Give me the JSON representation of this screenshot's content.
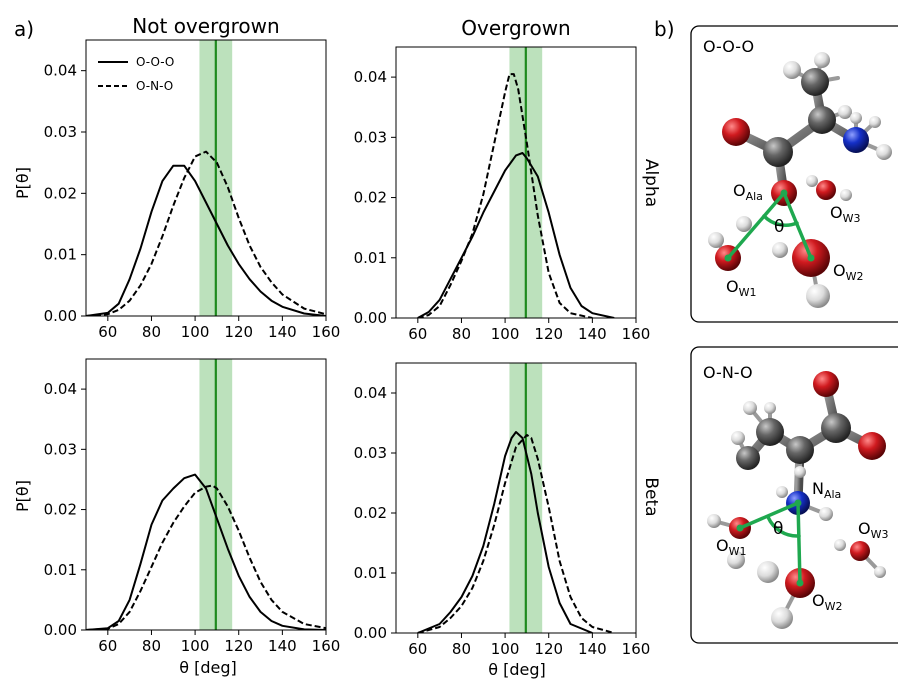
{
  "figure": {
    "panel_a_label": "a)",
    "panel_b_label": "b)",
    "col_titles": [
      "Not overgrown",
      "Overgrown"
    ],
    "row_labels": [
      "Alpha",
      "Beta"
    ],
    "ylabel": "P[θ]",
    "xlabel": "θ [deg]",
    "legend": [
      "O-O-O",
      "O-N-O"
    ],
    "colors": {
      "curve": "#000000",
      "reference_line": "#1e8a1e",
      "reference_band": "#a6d7a6",
      "angle_marker": "#1fa84f",
      "oxygen": "#c0161b",
      "carbon": "#5a5a5a",
      "nitrogen": "#1530c8",
      "hydrogen": "#e0e0e0"
    }
  },
  "chart_data": [
    {
      "type": "line",
      "panel": "Alpha / Not overgrown",
      "xlim": [
        50,
        160
      ],
      "ylim": [
        0,
        0.045
      ],
      "xticks": [
        "60",
        "80",
        "100",
        "120",
        "140",
        "160"
      ],
      "yticks": [
        "0.00",
        "0.01",
        "0.02",
        "0.03",
        "0.04"
      ],
      "reference": {
        "line": 109.5,
        "band": [
          102,
          117
        ]
      },
      "series": [
        {
          "name": "O-O-O",
          "style": "solid",
          "x": [
            50,
            60,
            65,
            70,
            75,
            80,
            85,
            90,
            95,
            100,
            105,
            110,
            115,
            120,
            125,
            130,
            135,
            140,
            150,
            160
          ],
          "y": [
            0,
            0.0005,
            0.002,
            0.006,
            0.011,
            0.017,
            0.022,
            0.0245,
            0.0245,
            0.022,
            0.0185,
            0.015,
            0.0115,
            0.0085,
            0.006,
            0.004,
            0.0025,
            0.0015,
            0.0004,
            0
          ]
        },
        {
          "name": "O-N-O",
          "style": "dashed",
          "x": [
            50,
            60,
            65,
            70,
            75,
            80,
            85,
            90,
            95,
            100,
            105,
            110,
            115,
            120,
            125,
            130,
            135,
            140,
            150,
            160
          ],
          "y": [
            0,
            0.0003,
            0.001,
            0.0025,
            0.005,
            0.0085,
            0.013,
            0.018,
            0.0225,
            0.026,
            0.0268,
            0.025,
            0.021,
            0.016,
            0.0115,
            0.008,
            0.0055,
            0.0035,
            0.0012,
            0.0003
          ]
        }
      ]
    },
    {
      "type": "line",
      "panel": "Alpha / Overgrown",
      "xlim": [
        50,
        160
      ],
      "ylim": [
        0,
        0.045
      ],
      "xticks": [
        "60",
        "80",
        "100",
        "120",
        "140",
        "160"
      ],
      "yticks": [
        "0.00",
        "0.01",
        "0.02",
        "0.03",
        "0.04"
      ],
      "reference": {
        "line": 109.5,
        "band": [
          102,
          117
        ]
      },
      "series": [
        {
          "name": "O-O-O",
          "style": "solid",
          "x": [
            60,
            65,
            70,
            75,
            80,
            85,
            90,
            95,
            100,
            105,
            108,
            110,
            115,
            120,
            125,
            130,
            135,
            140,
            150
          ],
          "y": [
            0,
            0.001,
            0.003,
            0.0065,
            0.01,
            0.0135,
            0.0175,
            0.021,
            0.0245,
            0.027,
            0.0274,
            0.0265,
            0.0235,
            0.0175,
            0.0105,
            0.005,
            0.002,
            0.0008,
            0
          ]
        },
        {
          "name": "O-N-O",
          "style": "dashed",
          "x": [
            60,
            65,
            70,
            75,
            80,
            85,
            90,
            95,
            100,
            102,
            104,
            106,
            110,
            115,
            120,
            125,
            130,
            140
          ],
          "y": [
            0,
            0.0005,
            0.002,
            0.0055,
            0.0095,
            0.014,
            0.0205,
            0.029,
            0.0375,
            0.0405,
            0.0405,
            0.038,
            0.029,
            0.017,
            0.0075,
            0.0025,
            0.0008,
            0
          ]
        }
      ]
    },
    {
      "type": "line",
      "panel": "Beta / Not overgrown",
      "xlim": [
        50,
        160
      ],
      "ylim": [
        0,
        0.045
      ],
      "xticks": [
        "60",
        "80",
        "100",
        "120",
        "140",
        "160"
      ],
      "yticks": [
        "0.00",
        "0.01",
        "0.02",
        "0.03",
        "0.04"
      ],
      "reference": {
        "line": 109.5,
        "band": [
          102,
          117
        ]
      },
      "series": [
        {
          "name": "O-O-O",
          "style": "solid",
          "x": [
            50,
            60,
            65,
            70,
            75,
            80,
            85,
            90,
            95,
            100,
            105,
            110,
            115,
            120,
            125,
            130,
            135,
            140,
            150,
            160
          ],
          "y": [
            0,
            0.0003,
            0.0015,
            0.005,
            0.011,
            0.0175,
            0.0215,
            0.0235,
            0.0252,
            0.0258,
            0.0235,
            0.0185,
            0.0135,
            0.009,
            0.0055,
            0.003,
            0.0015,
            0.0007,
            0.0001,
            0
          ]
        },
        {
          "name": "O-N-O",
          "style": "dashed",
          "x": [
            50,
            60,
            65,
            70,
            75,
            80,
            85,
            90,
            95,
            100,
            105,
            108,
            110,
            115,
            120,
            125,
            130,
            135,
            140,
            150,
            160
          ],
          "y": [
            0,
            0.0002,
            0.001,
            0.003,
            0.0065,
            0.0105,
            0.0145,
            0.0178,
            0.0205,
            0.0228,
            0.0238,
            0.024,
            0.0235,
            0.0205,
            0.0165,
            0.012,
            0.008,
            0.005,
            0.003,
            0.001,
            0.0003
          ]
        }
      ]
    },
    {
      "type": "line",
      "panel": "Beta / Overgrown",
      "xlim": [
        50,
        160
      ],
      "ylim": [
        0,
        0.045
      ],
      "xticks": [
        "60",
        "80",
        "100",
        "120",
        "140",
        "160"
      ],
      "yticks": [
        "0.00",
        "0.01",
        "0.02",
        "0.03",
        "0.04"
      ],
      "reference": {
        "line": 109.5,
        "band": [
          102,
          117
        ]
      },
      "series": [
        {
          "name": "O-O-O",
          "style": "solid",
          "x": [
            60,
            70,
            75,
            80,
            85,
            90,
            95,
            100,
            103,
            105,
            108,
            112,
            115,
            120,
            125,
            130,
            140
          ],
          "y": [
            0,
            0.0015,
            0.0035,
            0.006,
            0.0095,
            0.0145,
            0.0215,
            0.0295,
            0.0325,
            0.0335,
            0.0325,
            0.0265,
            0.02,
            0.011,
            0.005,
            0.0015,
            0
          ]
        },
        {
          "name": "O-N-O",
          "style": "dashed",
          "x": [
            60,
            70,
            75,
            80,
            85,
            90,
            95,
            100,
            105,
            110,
            112,
            115,
            120,
            125,
            130,
            135,
            140,
            150
          ],
          "y": [
            0,
            0.001,
            0.0025,
            0.0045,
            0.0075,
            0.012,
            0.018,
            0.025,
            0.031,
            0.033,
            0.0325,
            0.029,
            0.021,
            0.012,
            0.006,
            0.0025,
            0.001,
            0
          ]
        }
      ]
    }
  ],
  "molecules": [
    {
      "title": "O-O-O",
      "labels": [
        {
          "main": "O",
          "sub": "Ala"
        },
        {
          "main": "O",
          "sub": "W1"
        },
        {
          "main": "O",
          "sub": "W2"
        },
        {
          "main": "O",
          "sub": "W3"
        }
      ],
      "angle_symbol": "θ"
    },
    {
      "title": "O-N-O",
      "labels": [
        {
          "main": "N",
          "sub": "Ala"
        },
        {
          "main": "O",
          "sub": "W1"
        },
        {
          "main": "O",
          "sub": "W2"
        },
        {
          "main": "O",
          "sub": "W3"
        }
      ],
      "angle_symbol": "θ"
    }
  ]
}
